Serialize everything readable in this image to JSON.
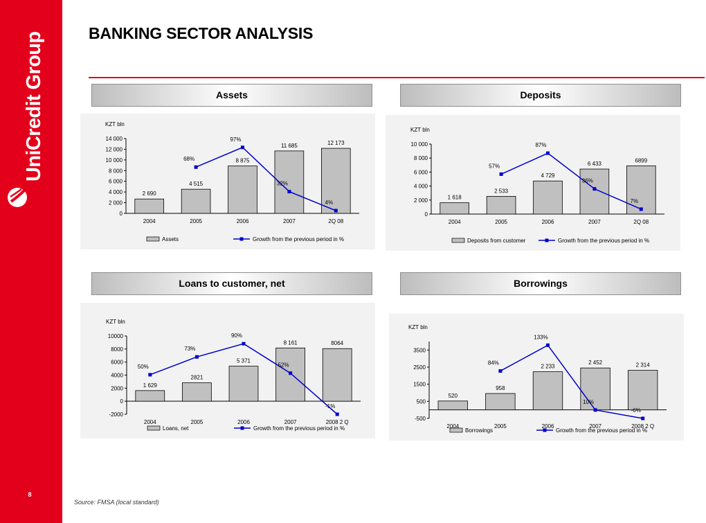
{
  "header": {
    "title": "BANKING SECTOR ANALYSIS",
    "page_number": "8"
  },
  "footer": {
    "source": "Source: FMSA (local standard)"
  },
  "colors": {
    "brand_red": "#e3001b",
    "bar_fill": "#c0c0c0",
    "line": "#0000cc",
    "panel_bg": "#f2f2f2"
  },
  "panels": [
    {
      "header": "Assets"
    },
    {
      "header": "Deposits"
    },
    {
      "header": "Loans to customer, net"
    },
    {
      "header": "Borrowings"
    }
  ],
  "chart_data": [
    {
      "type": "bar+line",
      "unit_label": "KZT bln",
      "categories": [
        "2004",
        "2005",
        "2006",
        "2007",
        "2Q 08"
      ],
      "ylim": [
        0,
        14000
      ],
      "yticks": [
        0,
        2000,
        4000,
        6000,
        8000,
        10000,
        12000,
        14000
      ],
      "ytick_labels": [
        "0",
        "2 000",
        "4 000",
        "6 000",
        "8 000",
        "10 000",
        "12 000",
        "14 000"
      ],
      "bars": {
        "name": "Assets",
        "values": [
          2690,
          4515,
          8875,
          11685,
          12173
        ],
        "labels": [
          "2 690",
          "4 515",
          "8 875",
          "11 685",
          "12 173"
        ]
      },
      "line": {
        "name": "Growth from the previous period in %",
        "values": [
          null,
          68,
          97,
          32,
          4
        ],
        "labels": [
          null,
          "68%",
          "97%",
          "32%",
          "4%"
        ]
      },
      "legend_position": "bottom"
    },
    {
      "type": "bar+line",
      "unit_label": "KZT bln",
      "categories": [
        "2004",
        "2005",
        "2006",
        "2007",
        "2Q 08"
      ],
      "ylim": [
        0,
        10000
      ],
      "yticks": [
        0,
        2000,
        4000,
        6000,
        8000,
        10000
      ],
      "ytick_labels": [
        "0",
        "2 000",
        "4 000",
        "6 000",
        "8 000",
        "10 000"
      ],
      "bars": {
        "name": "Deposits from customer",
        "values": [
          1618,
          2533,
          4729,
          6433,
          6899
        ],
        "labels": [
          "1 618",
          "2 533",
          "4 729",
          "6 433",
          "6899"
        ]
      },
      "line": {
        "name": "Growth from the previous period in %",
        "values": [
          null,
          57,
          87,
          36,
          7
        ],
        "labels": [
          null,
          "57%",
          "87%",
          "36%",
          "7%"
        ]
      },
      "legend_position": "bottom"
    },
    {
      "type": "bar+line",
      "unit_label": "KZT bln",
      "categories": [
        "2004",
        "2005",
        "2006",
        "2007",
        "2008 2 Q"
      ],
      "ylim": [
        -2000,
        10000
      ],
      "yticks": [
        -2000,
        0,
        2000,
        4000,
        6000,
        8000,
        10000
      ],
      "ytick_labels": [
        "-2000",
        "0",
        "2000",
        "4000",
        "6000",
        "8000",
        "10000"
      ],
      "bars": {
        "name": "Loans, net",
        "values": [
          1629,
          2821,
          5371,
          8161,
          8064
        ],
        "labels": [
          "1 629",
          "2821",
          "5 371",
          "8 161",
          "8064"
        ]
      },
      "line": {
        "name": "Growth from the previous period in %",
        "values": [
          50,
          73,
          90,
          52,
          -1
        ],
        "labels": [
          "50%",
          "73%",
          "90%",
          "52%",
          "-1%"
        ]
      },
      "legend_position": "bottom"
    },
    {
      "type": "bar+line",
      "unit_label": "KZT bln",
      "categories": [
        "2004",
        "2005",
        "2006",
        "2007",
        "2008 2 Q"
      ],
      "ylim": [
        -500,
        4000
      ],
      "yticks": [
        -500,
        500,
        1500,
        2500,
        3500
      ],
      "ytick_labels": [
        "-500",
        "500",
        "1500",
        "2500",
        "3500"
      ],
      "bars": {
        "name": "Borrowings",
        "values": [
          520,
          958,
          2233,
          2452,
          2314
        ],
        "labels": [
          "520",
          "958",
          "2 233",
          "2 452",
          "2 314"
        ]
      },
      "line": {
        "name": "Growth from the previous period in %",
        "values": [
          null,
          84,
          133,
          10,
          -6
        ],
        "labels": [
          null,
          "84%",
          "133%",
          "10%",
          "-6%"
        ]
      },
      "legend_position": "bottom"
    }
  ]
}
